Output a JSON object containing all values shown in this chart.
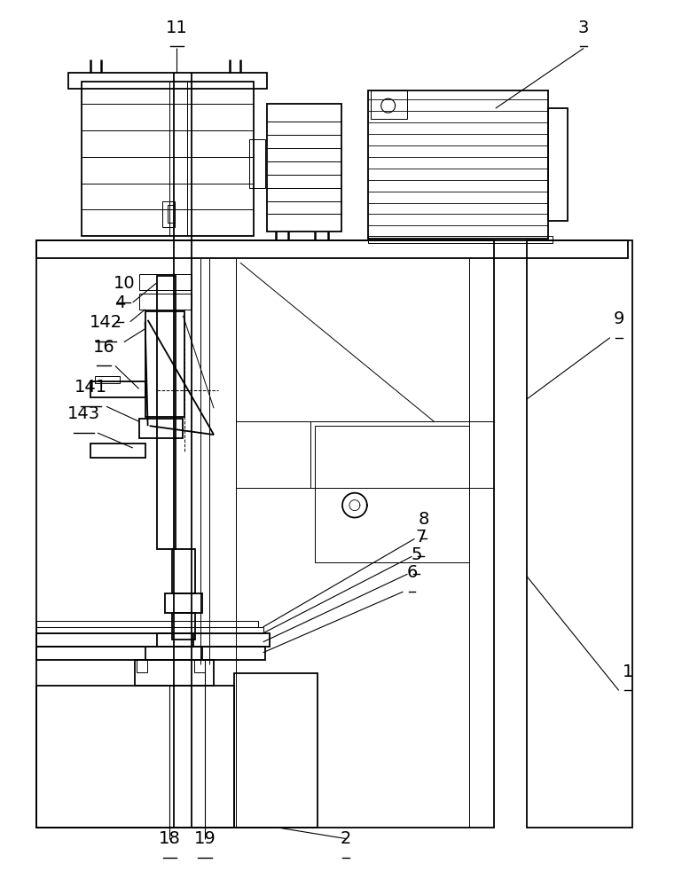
{
  "bg_color": "#ffffff",
  "lc": "#000000",
  "lw": 1.3,
  "tlw": 0.7,
  "fig_width": 7.78,
  "fig_height": 10.0
}
